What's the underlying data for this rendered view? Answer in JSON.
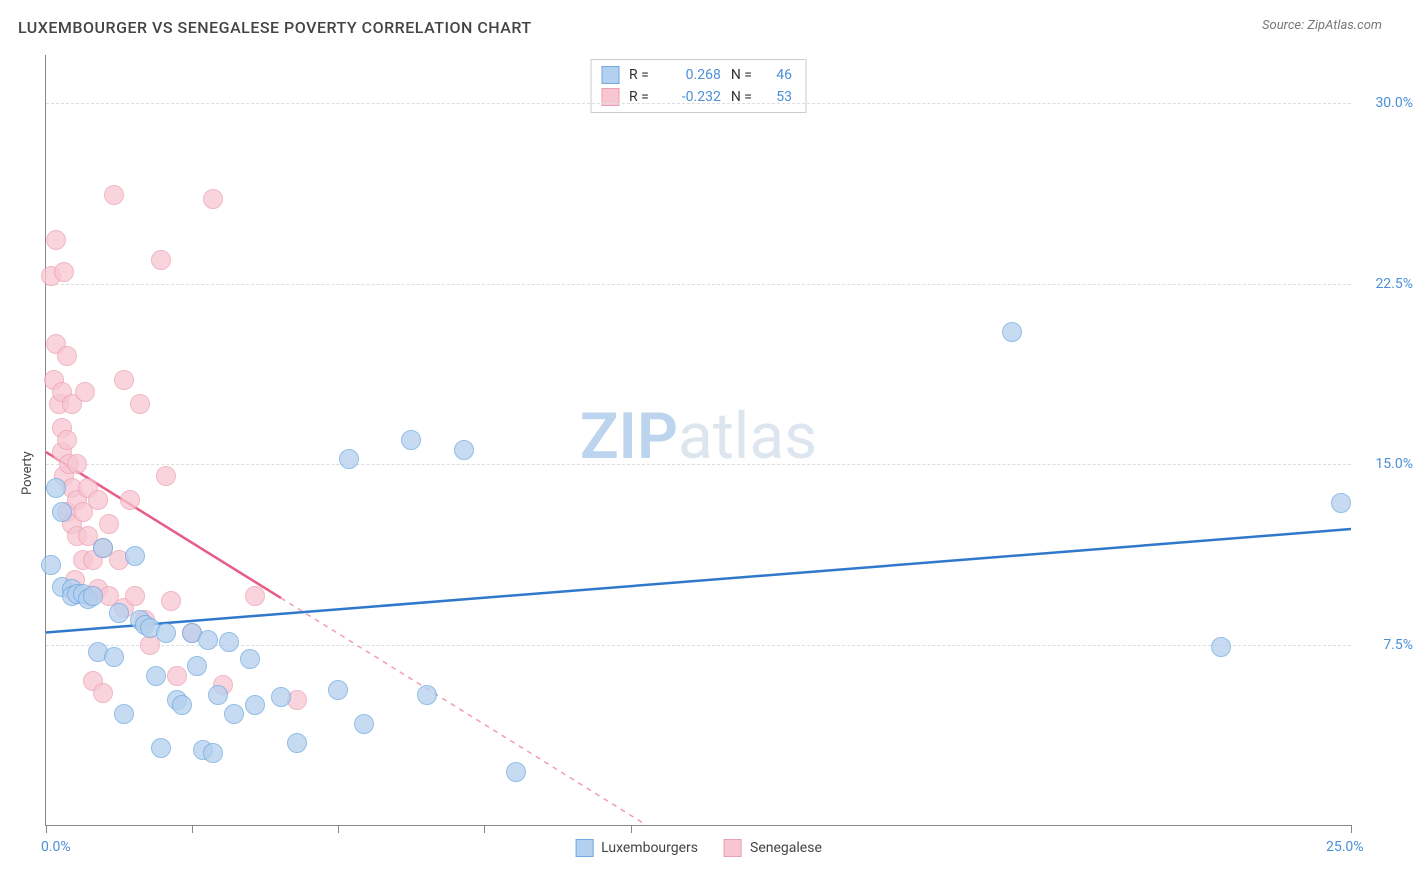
{
  "title": "LUXEMBOURGER VS SENEGALESE POVERTY CORRELATION CHART",
  "source": "Source: ZipAtlas.com",
  "watermark_parts": [
    "ZIP",
    "atlas"
  ],
  "chart": {
    "type": "scatter",
    "ylabel": "Poverty",
    "x_range": [
      0,
      25
    ],
    "y_range": [
      0,
      32
    ],
    "x_ticks": [
      0,
      2.8,
      5.6,
      8.4,
      11.2,
      25
    ],
    "x_tick_labels": {
      "0": "0.0%",
      "25": "25.0%"
    },
    "y_gridlines": [
      7.5,
      15.0,
      22.5,
      30.0
    ],
    "y_tick_labels": [
      "7.5%",
      "15.0%",
      "22.5%",
      "30.0%"
    ],
    "background": "#ffffff",
    "grid_color": "#dddddd",
    "axis_color": "#888888",
    "tick_label_color": "#4a8fd8",
    "series": [
      {
        "name": "Luxembourgers",
        "fill": "#b3d0ee",
        "stroke": "#6fa9e0",
        "radius": 9,
        "opacity": 0.75,
        "R": "0.268",
        "N": "46",
        "trend": {
          "x1": 0,
          "y1": 8.0,
          "x2": 25,
          "y2": 12.3,
          "color": "#2f78cc",
          "width": 2.5,
          "dash_after_x": null
        },
        "points": [
          [
            0.1,
            10.8
          ],
          [
            0.2,
            14.0
          ],
          [
            0.3,
            13.0
          ],
          [
            0.3,
            9.9
          ],
          [
            0.5,
            9.8
          ],
          [
            0.5,
            9.5
          ],
          [
            0.6,
            9.6
          ],
          [
            0.7,
            9.6
          ],
          [
            0.8,
            9.4
          ],
          [
            0.9,
            9.5
          ],
          [
            1.0,
            7.2
          ],
          [
            1.1,
            11.5
          ],
          [
            1.3,
            7.0
          ],
          [
            1.4,
            8.8
          ],
          [
            1.5,
            4.6
          ],
          [
            1.7,
            11.2
          ],
          [
            1.8,
            8.5
          ],
          [
            1.9,
            8.3
          ],
          [
            2.0,
            8.2
          ],
          [
            2.1,
            6.2
          ],
          [
            2.2,
            3.2
          ],
          [
            2.3,
            8.0
          ],
          [
            2.5,
            5.2
          ],
          [
            2.6,
            5.0
          ],
          [
            2.8,
            8.0
          ],
          [
            2.9,
            6.6
          ],
          [
            3.0,
            3.1
          ],
          [
            3.1,
            7.7
          ],
          [
            3.2,
            3.0
          ],
          [
            3.3,
            5.4
          ],
          [
            3.5,
            7.6
          ],
          [
            3.6,
            4.6
          ],
          [
            3.9,
            6.9
          ],
          [
            4.0,
            5.0
          ],
          [
            4.5,
            5.3
          ],
          [
            4.8,
            3.4
          ],
          [
            5.6,
            5.6
          ],
          [
            5.8,
            15.2
          ],
          [
            6.1,
            4.2
          ],
          [
            7.0,
            16.0
          ],
          [
            7.3,
            5.4
          ],
          [
            8.0,
            15.6
          ],
          [
            9.0,
            2.2
          ],
          [
            18.5,
            20.5
          ],
          [
            22.5,
            7.4
          ],
          [
            24.8,
            13.4
          ]
        ]
      },
      {
        "name": "Senegalese",
        "fill": "#f7c6d2",
        "stroke": "#eda0b5",
        "radius": 9,
        "opacity": 0.75,
        "R": "-0.232",
        "N": "53",
        "trend": {
          "x1": 0,
          "y1": 15.5,
          "x2": 11.5,
          "y2": 0,
          "color": "#e85d87",
          "width": 2.5,
          "dash_after_x": 4.5
        },
        "points": [
          [
            0.1,
            22.8
          ],
          [
            0.15,
            18.5
          ],
          [
            0.2,
            24.3
          ],
          [
            0.2,
            20.0
          ],
          [
            0.25,
            17.5
          ],
          [
            0.3,
            18.0
          ],
          [
            0.3,
            16.5
          ],
          [
            0.3,
            15.5
          ],
          [
            0.35,
            23.0
          ],
          [
            0.35,
            14.5
          ],
          [
            0.4,
            19.5
          ],
          [
            0.4,
            16.0
          ],
          [
            0.4,
            13.0
          ],
          [
            0.45,
            15.0
          ],
          [
            0.5,
            17.5
          ],
          [
            0.5,
            14.0
          ],
          [
            0.5,
            12.5
          ],
          [
            0.55,
            10.2
          ],
          [
            0.6,
            15.0
          ],
          [
            0.6,
            13.5
          ],
          [
            0.6,
            12.0
          ],
          [
            0.7,
            13.0
          ],
          [
            0.7,
            11.0
          ],
          [
            0.75,
            18.0
          ],
          [
            0.8,
            14.0
          ],
          [
            0.8,
            12.0
          ],
          [
            0.85,
            9.5
          ],
          [
            0.9,
            11.0
          ],
          [
            0.9,
            6.0
          ],
          [
            1.0,
            13.5
          ],
          [
            1.0,
            9.8
          ],
          [
            1.1,
            11.5
          ],
          [
            1.1,
            5.5
          ],
          [
            1.2,
            12.5
          ],
          [
            1.2,
            9.5
          ],
          [
            1.3,
            26.2
          ],
          [
            1.4,
            11.0
          ],
          [
            1.5,
            18.5
          ],
          [
            1.5,
            9.0
          ],
          [
            1.6,
            13.5
          ],
          [
            1.7,
            9.5
          ],
          [
            1.8,
            17.5
          ],
          [
            1.9,
            8.5
          ],
          [
            2.0,
            7.5
          ],
          [
            2.2,
            23.5
          ],
          [
            2.3,
            14.5
          ],
          [
            2.4,
            9.3
          ],
          [
            2.5,
            6.2
          ],
          [
            2.8,
            8.0
          ],
          [
            3.2,
            26.0
          ],
          [
            3.4,
            5.8
          ],
          [
            4.0,
            9.5
          ],
          [
            4.8,
            5.2
          ]
        ]
      }
    ],
    "legend_bottom": [
      "Luxembourgers",
      "Senegalese"
    ]
  }
}
